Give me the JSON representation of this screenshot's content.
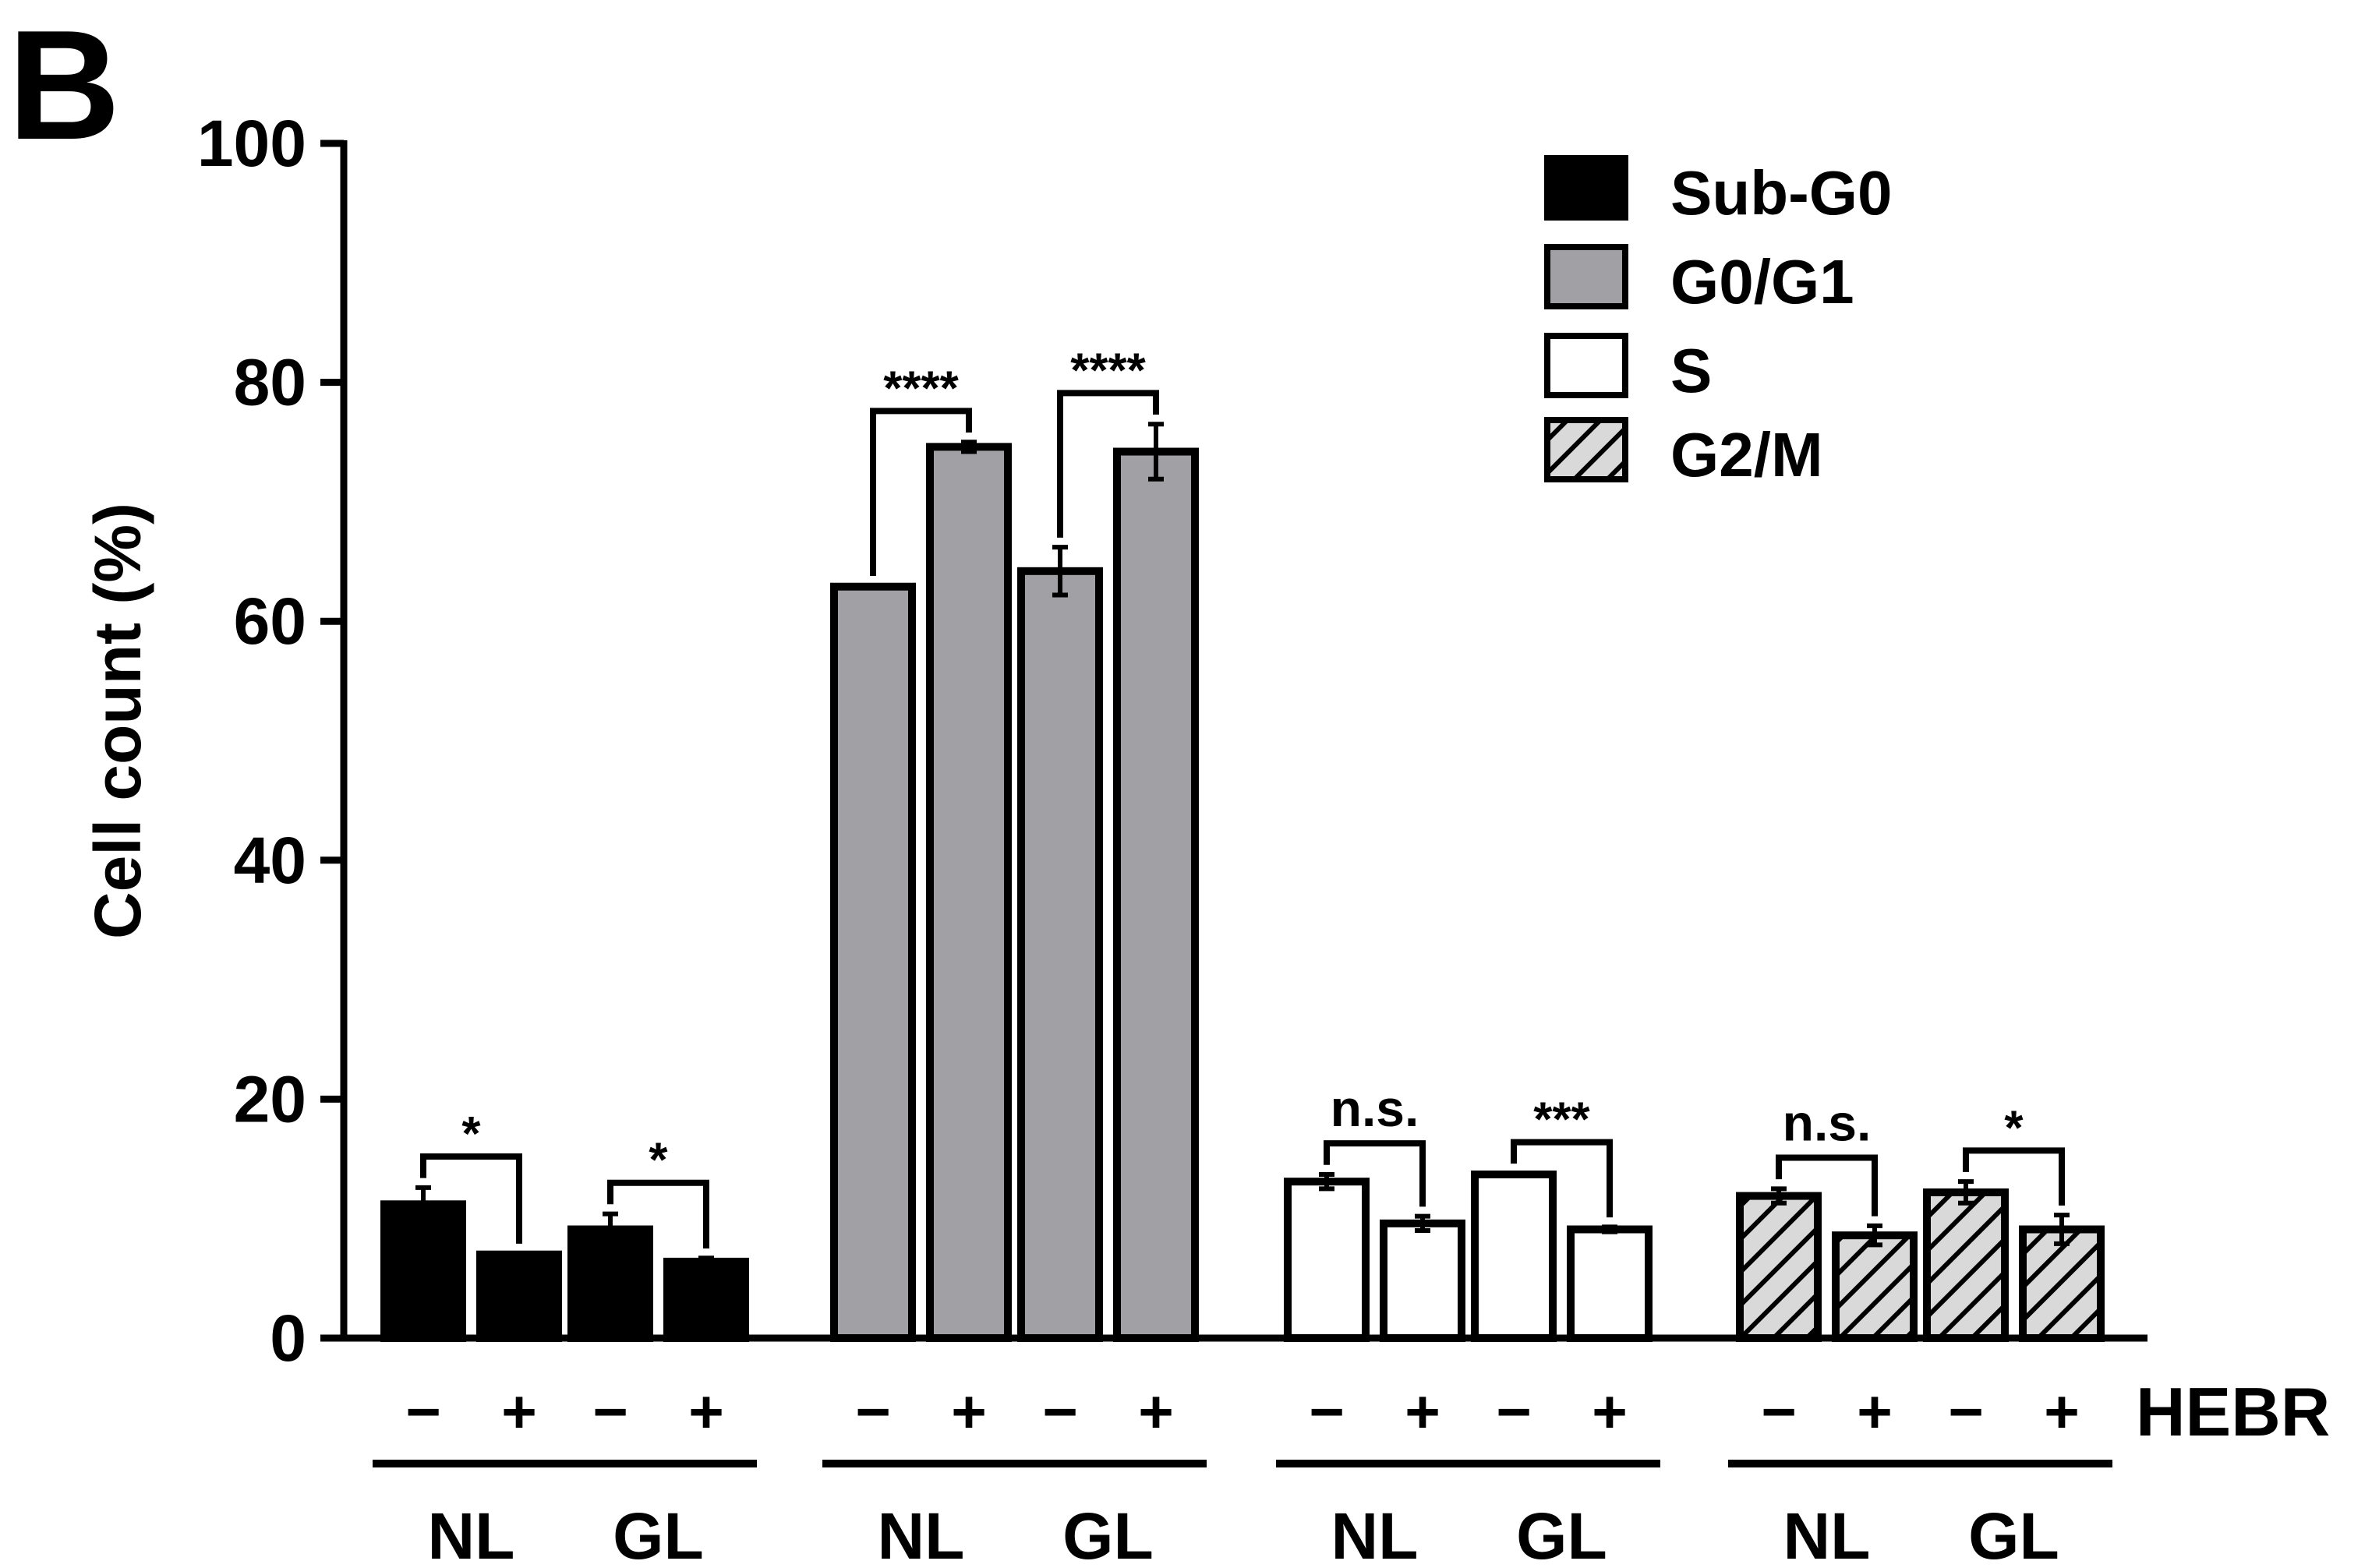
{
  "panel_label": "B",
  "chart_data": {
    "type": "bar",
    "title": "",
    "xlabel": "",
    "ylabel": "Cell count (%)",
    "ylim": [
      0,
      100
    ],
    "yticks": [
      0,
      20,
      40,
      60,
      80,
      100
    ],
    "treatment_label": "HEBR",
    "treatment_signs": [
      "−",
      "+"
    ],
    "conditions": [
      "NL",
      "GL"
    ],
    "legend": [
      {
        "name": "Sub-G0",
        "color": "#000000",
        "pattern": "solid"
      },
      {
        "name": "G0/G1",
        "color": "#a0a0a5",
        "pattern": "solid"
      },
      {
        "name": "S",
        "color": "#ffffff",
        "pattern": "solid"
      },
      {
        "name": "G2/M",
        "color": "#d9d9d9",
        "pattern": "hatch"
      }
    ],
    "categories": [
      "NL −",
      "NL +",
      "GL −",
      "GL +"
    ],
    "series": [
      {
        "name": "Sub-G0",
        "values": [
          11.2,
          7.0,
          9.1,
          6.4
        ],
        "errors": [
          1.4,
          0.1,
          1.3,
          0.3
        ],
        "significance": [
          "*",
          "*"
        ]
      },
      {
        "name": "G0/G1",
        "values": [
          62.9,
          74.6,
          64.2,
          74.2
        ],
        "errors": [
          0.1,
          0.4,
          2.0,
          2.3
        ],
        "significance": [
          "****",
          "****"
        ]
      },
      {
        "name": "S",
        "values": [
          13.1,
          9.6,
          13.7,
          9.1
        ],
        "errors": [
          0.6,
          0.6,
          0.1,
          0.2
        ],
        "significance": [
          "n.s.",
          "***"
        ]
      },
      {
        "name": "G2/M",
        "values": [
          11.9,
          8.6,
          12.2,
          9.1
        ],
        "errors": [
          0.6,
          0.8,
          0.9,
          1.2
        ],
        "significance": [
          "n.s.",
          "*"
        ]
      }
    ]
  }
}
